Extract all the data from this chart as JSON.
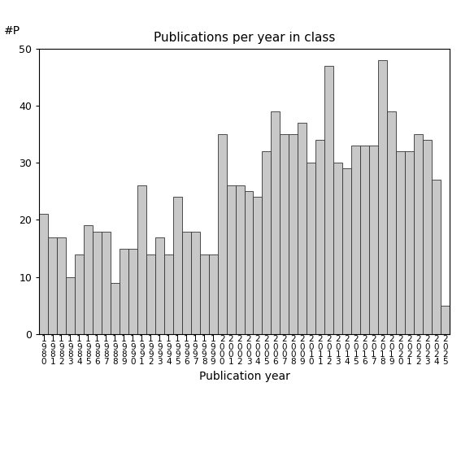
{
  "title": "Publications per year in class",
  "xlabel": "Publication year",
  "ylabel_text": "#P",
  "bar_color": "#c8c8c8",
  "bar_edge_color": "#333333",
  "ylim": [
    0,
    50
  ],
  "yticks": [
    0,
    10,
    20,
    30,
    40,
    50
  ],
  "years": [
    1980,
    1981,
    1982,
    1983,
    1984,
    1985,
    1986,
    1987,
    1988,
    1989,
    1990,
    1991,
    1992,
    1993,
    1994,
    1995,
    1996,
    1997,
    1998,
    1999,
    2000,
    2001,
    2002,
    2003,
    2004,
    2005,
    2006,
    2007,
    2008,
    2009,
    2010,
    2011,
    2012,
    2013,
    2014,
    2015,
    2016,
    2017,
    2018,
    2019,
    2020,
    2021,
    2022,
    2023,
    2024,
    2025
  ],
  "values": [
    21,
    17,
    17,
    10,
    14,
    19,
    18,
    18,
    9,
    15,
    15,
    26,
    14,
    17,
    14,
    24,
    18,
    18,
    14,
    14,
    35,
    26,
    26,
    25,
    24,
    32,
    39,
    35,
    35,
    37,
    30,
    34,
    47,
    30,
    29,
    33,
    33,
    33,
    48,
    39,
    32,
    32,
    35,
    34,
    27,
    5
  ]
}
